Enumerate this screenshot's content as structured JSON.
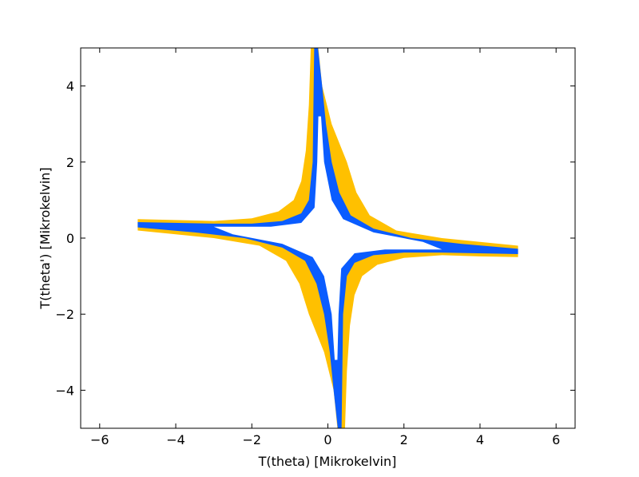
{
  "chart_data": {
    "type": "polygon",
    "xlabel": "T(theta) [Mikrokelvin]",
    "ylabel": "T(theta') [Mikrokelvin]",
    "xlim": [
      -6.5,
      6.5
    ],
    "ylim": [
      -5,
      5
    ],
    "xticks": [
      {
        "value": -6,
        "label": "−6"
      },
      {
        "value": -4,
        "label": "−4"
      },
      {
        "value": -2,
        "label": "−2"
      },
      0,
      2,
      4,
      6
    ],
    "yticks": [
      {
        "value": -4,
        "label": "−4"
      },
      {
        "value": -2,
        "label": "−2"
      },
      0,
      2,
      4
    ],
    "grid": false,
    "series": [
      {
        "color": "#ffc000",
        "x": [
          -5,
          -3,
          -2,
          -1.3,
          -0.9,
          -0.7,
          -0.58,
          -0.5,
          -0.45,
          -0.25,
          -0.15,
          0.1,
          0.3,
          0.5,
          0.75,
          1.1,
          1.8,
          3,
          5,
          5,
          4,
          3,
          2,
          1.3,
          0.9,
          0.7,
          0.58,
          0.5,
          0.45,
          0.25,
          0.15,
          -0.1,
          -0.3,
          -0.5,
          -0.75,
          -1.1,
          -1.8,
          -3,
          -5
        ],
        "y": [
          0.5,
          0.45,
          0.52,
          0.7,
          1.0,
          1.5,
          2.3,
          3.5,
          5,
          5,
          4,
          3,
          2.5,
          2,
          1.2,
          0.6,
          0.2,
          0,
          -0.2,
          -0.5,
          -0.48,
          -0.45,
          -0.52,
          -0.7,
          -1,
          -1.5,
          -2.3,
          -3.5,
          -5,
          -5,
          -4,
          -3,
          -2.5,
          -2,
          -1.2,
          -0.6,
          -0.2,
          0,
          0.2
        ]
      },
      {
        "color": "#0a5cff",
        "x": [
          -5,
          -3,
          -2,
          -1.2,
          -0.7,
          -0.5,
          -0.4,
          -0.38,
          -0.36,
          -0.26,
          -0.15,
          -0.05,
          0.1,
          0.3,
          0.6,
          1.2,
          2.2,
          3.5,
          5,
          5,
          3,
          2,
          1.2,
          0.7,
          0.5,
          0.4,
          0.38,
          0.36,
          0.26,
          0.15,
          0.05,
          -0.1,
          -0.3,
          -0.6,
          -1.2,
          -2.2,
          -3.5,
          -5
        ],
        "y": [
          0.42,
          0.38,
          0.38,
          0.45,
          0.65,
          1.0,
          2,
          3.5,
          5,
          5,
          4,
          3,
          2,
          1.2,
          0.6,
          0.25,
          0,
          -0.15,
          -0.28,
          -0.42,
          -0.38,
          -0.38,
          -0.45,
          -0.65,
          -1,
          -2,
          -3.5,
          -5,
          -5,
          -4,
          -3,
          -2,
          -1.2,
          -0.6,
          -0.25,
          0,
          0.15,
          0.28
        ]
      },
      {
        "color": "#ffffff",
        "x": [
          -3,
          -1.5,
          -0.7,
          -0.35,
          -0.28,
          -0.25,
          -0.18,
          -0.1,
          0.1,
          0.4,
          1.2,
          2.5,
          3,
          1.5,
          0.7,
          0.35,
          0.28,
          0.25,
          0.18,
          0.1,
          -0.1,
          -0.4,
          -1.2,
          -2.5
        ],
        "y": [
          0.3,
          0.3,
          0.4,
          0.8,
          2,
          3.2,
          3.2,
          2,
          1.0,
          0.5,
          0.15,
          -0.1,
          -0.3,
          -0.3,
          -0.4,
          -0.8,
          -2,
          -3.2,
          -3.2,
          -2,
          -1,
          -0.5,
          -0.15,
          0.1
        ]
      }
    ]
  }
}
